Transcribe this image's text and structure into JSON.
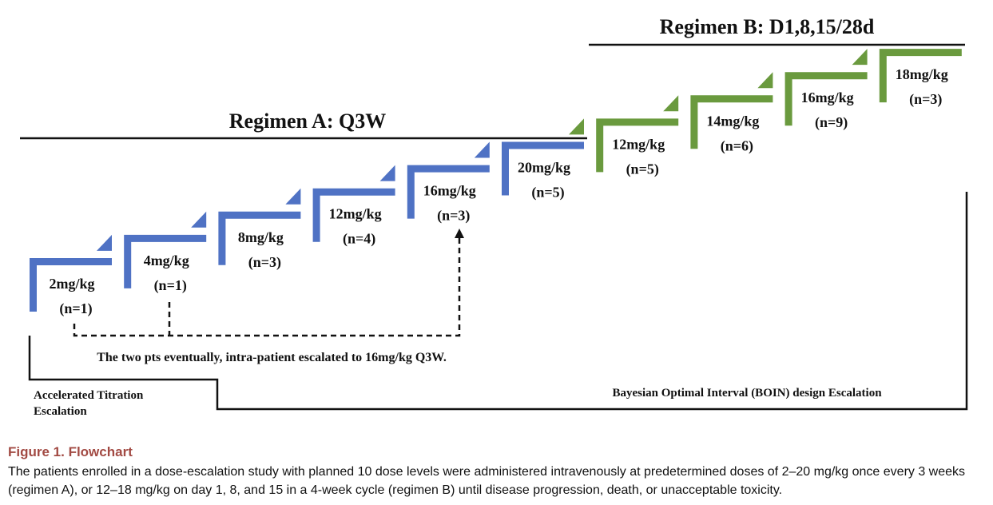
{
  "regimen_a": {
    "title": "Regimen A: Q3W",
    "color": "#4f72c4",
    "steps": [
      {
        "dose": "2mg/kg",
        "n": "(n=1)"
      },
      {
        "dose": "4mg/kg",
        "n": "(n=1)"
      },
      {
        "dose": "8mg/kg",
        "n": "(n=3)"
      },
      {
        "dose": "12mg/kg",
        "n": "(n=4)"
      },
      {
        "dose": "16mg/kg",
        "n": "(n=3)"
      },
      {
        "dose": "20mg/kg",
        "n": "(n=5)"
      }
    ]
  },
  "regimen_b": {
    "title": "Regimen B: D1,8,15/28d",
    "color": "#6a9a3e",
    "steps": [
      {
        "dose": "12mg/kg",
        "n": "(n=5)"
      },
      {
        "dose": "14mg/kg",
        "n": "(n=6)"
      },
      {
        "dose": "16mg/kg",
        "n": "(n=9)"
      },
      {
        "dose": "18mg/kg",
        "n": "(n=3)"
      }
    ]
  },
  "annotation": "The two pts eventually, intra-patient escalated to 16mg/kg Q3W.",
  "phases": {
    "accelerated": [
      "Accelerated Titration",
      "Escalation"
    ],
    "boin": "Bayesian Optimal Interval (BOIN) design Escalation"
  },
  "caption": {
    "label": "Figure 1. Flowchart",
    "text": "The patients enrolled in a dose-escalation study with planned 10 dose levels were administered intravenously at predetermined doses of 2–20 mg/kg once every 3 weeks (regimen A), or 12–18 mg/kg on day 1, 8, and 15 in a 4-week cycle (regimen B) until disease progression, death, or unacceptable toxicity."
  }
}
